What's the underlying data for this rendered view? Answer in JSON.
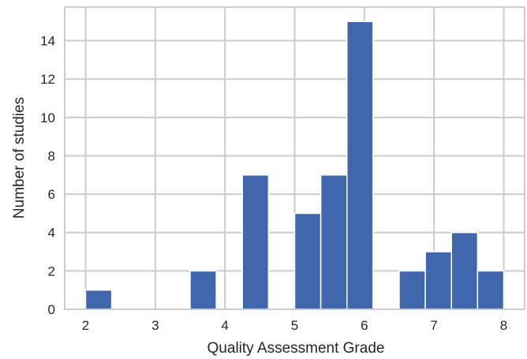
{
  "chart_data": {
    "type": "bar",
    "subtype": "histogram",
    "title": "",
    "xlabel": "Quality Assessment Grade",
    "ylabel": "Number of studies",
    "xlim": [
      1.7,
      8.3
    ],
    "ylim": [
      0,
      15.75
    ],
    "xticks": [
      2,
      3,
      4,
      5,
      6,
      7,
      8
    ],
    "yticks": [
      0,
      2,
      4,
      6,
      8,
      10,
      12,
      14
    ],
    "bin_width": 0.375,
    "bins": [
      {
        "x0": 2.0,
        "x1": 2.375,
        "value": 1
      },
      {
        "x0": 3.5,
        "x1": 3.875,
        "value": 2
      },
      {
        "x0": 4.25,
        "x1": 4.625,
        "value": 7
      },
      {
        "x0": 5.0,
        "x1": 5.375,
        "value": 5
      },
      {
        "x0": 5.375,
        "x1": 5.75,
        "value": 7
      },
      {
        "x0": 5.75,
        "x1": 6.125,
        "value": 15
      },
      {
        "x0": 6.5,
        "x1": 6.875,
        "value": 2
      },
      {
        "x0": 6.875,
        "x1": 7.25,
        "value": 3
      },
      {
        "x0": 7.25,
        "x1": 7.625,
        "value": 4
      },
      {
        "x0": 7.625,
        "x1": 8.0,
        "value": 2
      }
    ],
    "grid": true,
    "colors": {
      "bar": "#4066ad",
      "grid": "#cccccc",
      "spine": "#cccccc",
      "background": "#ffffff"
    }
  }
}
